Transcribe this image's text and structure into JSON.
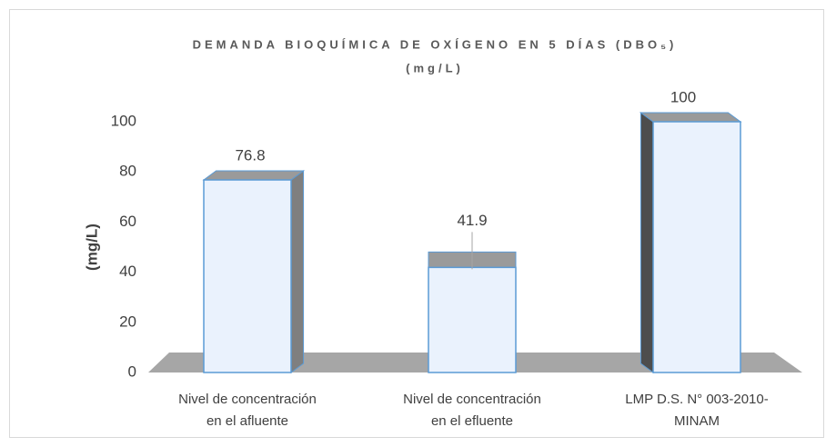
{
  "chart_data": {
    "type": "bar3d",
    "title": "DEMANDA BIOQUÍMICA DE OXÍGENO EN 5 DÍAS (DBO₅)",
    "subtitle": "(mg/L)",
    "y_label": "(mg/L)",
    "categories": [
      [
        "Nivel de concentración",
        "en el afluente"
      ],
      [
        "Nivel de concentración",
        "en el efluente"
      ],
      [
        "LMP D.S. N° 003-2010-",
        "MINAM"
      ]
    ],
    "values": [
      76.8,
      41.9,
      100
    ],
    "color": "#eaf2fd",
    "edge_color": "#5b9bd5",
    "ylim": [
      0,
      100
    ],
    "yticks": [
      0,
      20,
      40,
      60,
      80,
      100
    ],
    "grid": false
  }
}
